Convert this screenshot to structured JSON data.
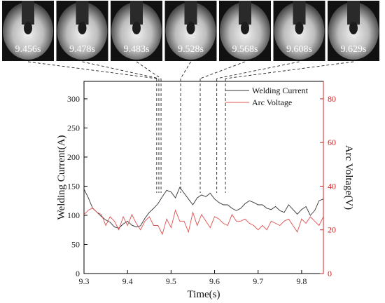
{
  "frames": {
    "times": [
      "9.456s",
      "9.478s",
      "9.483s",
      "9.528s",
      "9.568s",
      "9.608s",
      "9.629s"
    ],
    "marker_times": [
      9.467,
      9.472,
      9.477,
      9.522,
      9.567,
      9.605,
      9.625
    ]
  },
  "chart_data": {
    "type": "line",
    "xlabel": "Time(s)",
    "ylabel_left": "Welding Current(A)",
    "ylabel_right": "Arc Voltage(V)",
    "xlim": [
      9.3,
      9.85
    ],
    "ylim_left": [
      0,
      330
    ],
    "ylim_right": [
      0,
      88
    ],
    "xticks": [
      9.3,
      9.4,
      9.5,
      9.6,
      9.7,
      9.8
    ],
    "yticks_left": [
      0,
      50,
      100,
      150,
      200,
      250,
      300
    ],
    "yticks_right": [
      0,
      20,
      40,
      60,
      80
    ],
    "legend_position": "top-right",
    "colors": {
      "current": "#333333",
      "voltage": "#e05050",
      "right_axis": "#d42020"
    },
    "series": [
      {
        "name": "Welding Current",
        "axis": "left",
        "x": [
          9.3,
          9.31,
          9.32,
          9.33,
          9.34,
          9.35,
          9.36,
          9.37,
          9.38,
          9.39,
          9.4,
          9.41,
          9.42,
          9.43,
          9.44,
          9.45,
          9.46,
          9.47,
          9.48,
          9.49,
          9.5,
          9.51,
          9.52,
          9.53,
          9.54,
          9.55,
          9.56,
          9.57,
          9.58,
          9.59,
          9.6,
          9.61,
          9.62,
          9.63,
          9.64,
          9.65,
          9.66,
          9.67,
          9.68,
          9.69,
          9.7,
          9.71,
          9.72,
          9.73,
          9.74,
          9.75,
          9.76,
          9.77,
          9.78,
          9.79,
          9.8,
          9.81,
          9.82,
          9.83,
          9.84,
          9.85
        ],
        "values": [
          145,
          130,
          112,
          105,
          98,
          92,
          88,
          80,
          78,
          85,
          90,
          83,
          80,
          82,
          95,
          105,
          112,
          120,
          132,
          143,
          140,
          130,
          148,
          138,
          128,
          118,
          130,
          135,
          132,
          138,
          128,
          122,
          118,
          118,
          112,
          108,
          112,
          120,
          125,
          122,
          118,
          118,
          112,
          110,
          115,
          108,
          105,
          118,
          110,
          102,
          110,
          115,
          100,
          108,
          125,
          128
        ]
      },
      {
        "name": "Arc Voltage",
        "axis": "right",
        "x": [
          9.3,
          9.31,
          9.32,
          9.33,
          9.34,
          9.35,
          9.36,
          9.37,
          9.38,
          9.39,
          9.4,
          9.41,
          9.42,
          9.43,
          9.44,
          9.45,
          9.46,
          9.47,
          9.48,
          9.49,
          9.5,
          9.51,
          9.52,
          9.53,
          9.54,
          9.55,
          9.56,
          9.57,
          9.58,
          9.59,
          9.6,
          9.61,
          9.62,
          9.63,
          9.64,
          9.65,
          9.66,
          9.67,
          9.68,
          9.69,
          9.7,
          9.71,
          9.72,
          9.73,
          9.74,
          9.75,
          9.76,
          9.77,
          9.78,
          9.79,
          9.8,
          9.81,
          9.82,
          9.83,
          9.84,
          9.85
        ],
        "values": [
          27,
          29,
          30,
          28,
          27,
          22,
          26,
          24,
          20,
          26,
          22,
          27,
          23,
          20,
          24,
          26,
          22,
          22,
          18,
          25,
          21,
          29,
          24,
          24,
          19,
          28,
          22,
          27,
          24,
          21,
          26,
          25,
          23,
          22,
          27,
          24,
          24,
          25,
          23,
          22,
          20,
          22,
          20,
          24,
          23,
          22,
          24,
          25,
          22,
          19,
          25,
          23,
          26,
          24,
          22,
          26
        ]
      }
    ]
  }
}
